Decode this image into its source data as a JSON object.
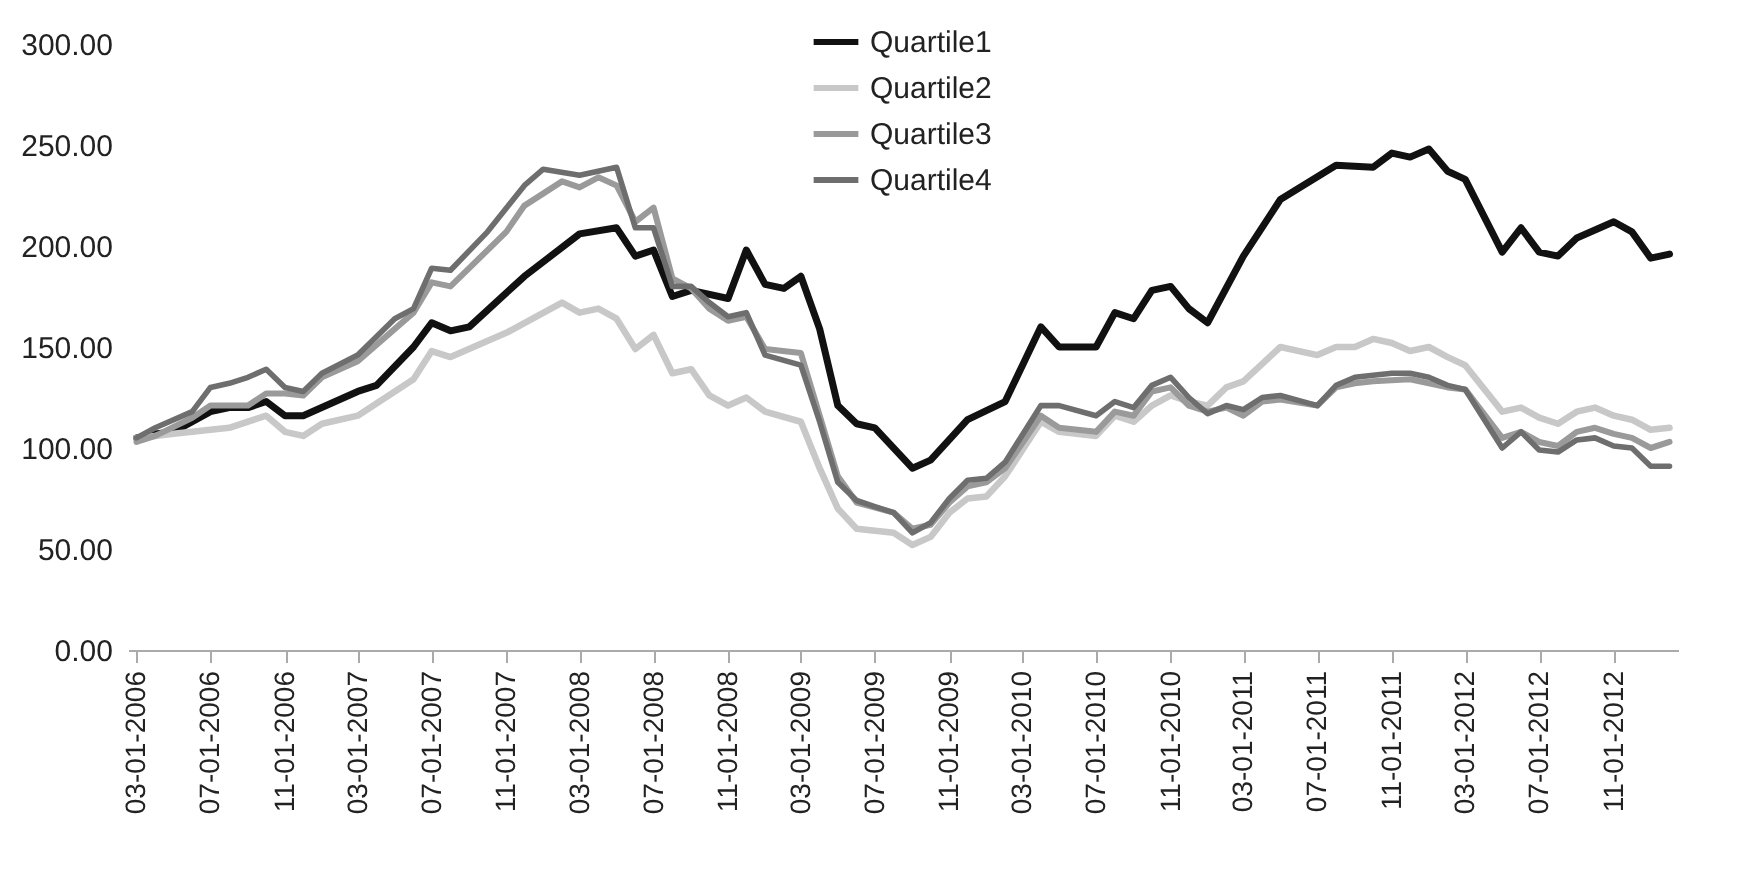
{
  "chart_data": {
    "type": "line",
    "series": [
      {
        "name": "Quartile1",
        "color": "#111111",
        "x": [
          "2006-03",
          "2006-04",
          "2006-05",
          "2006-06",
          "2006-07",
          "2006-08",
          "2006-09",
          "2006-10",
          "2006-11",
          "2006-12",
          "2007-03",
          "2007-04",
          "2007-06",
          "2007-07",
          "2007-08",
          "2007-09",
          "2007-12",
          "2008-03",
          "2008-05",
          "2008-06",
          "2008-07",
          "2008-08",
          "2008-09",
          "2008-11",
          "2008-12",
          "2009-01",
          "2009-02",
          "2009-03",
          "2009-04",
          "2009-05",
          "2009-06",
          "2009-07",
          "2009-09",
          "2009-10",
          "2009-12",
          "2010-02",
          "2010-04",
          "2010-05",
          "2010-07",
          "2010-08",
          "2010-09",
          "2010-10",
          "2010-11",
          "2010-12",
          "2011-01",
          "2011-03",
          "2011-05",
          "2011-08",
          "2011-10",
          "2011-11",
          "2011-12",
          "2012-01",
          "2012-02",
          "2012-03",
          "2012-05",
          "2012-06",
          "2012-07",
          "2012-08",
          "2012-09",
          "2012-11",
          "2012-12",
          "2013-01",
          "2013-02"
        ],
        "values": [
          105,
          107,
          108,
          113,
          118,
          120,
          120,
          123,
          116,
          116,
          128,
          131,
          150,
          162,
          158,
          160,
          185,
          206,
          209,
          195,
          198,
          175,
          178,
          174,
          198,
          181,
          179,
          185,
          159,
          121,
          112,
          110,
          90,
          94,
          114,
          123,
          160,
          150,
          150,
          167,
          164,
          178,
          180,
          169,
          162,
          195,
          223,
          240,
          239,
          246,
          244,
          248,
          237,
          233,
          197,
          209,
          197,
          195,
          204,
          212,
          207,
          194,
          196
        ]
      },
      {
        "name": "Quartile2",
        "color": "#c8c8c8",
        "x": [
          "2006-03",
          "2006-04",
          "2006-05",
          "2006-06",
          "2006-07",
          "2006-08",
          "2006-10",
          "2006-11",
          "2006-12",
          "2007-01",
          "2007-03",
          "2007-06",
          "2007-07",
          "2007-08",
          "2007-11",
          "2008-02",
          "2008-03",
          "2008-04",
          "2008-05",
          "2008-06",
          "2008-07",
          "2008-08",
          "2008-09",
          "2008-10",
          "2008-11",
          "2008-12",
          "2009-01",
          "2009-03",
          "2009-04",
          "2009-05",
          "2009-06",
          "2009-08",
          "2009-09",
          "2009-10",
          "2009-11",
          "2009-12",
          "2010-01",
          "2010-02",
          "2010-04",
          "2010-05",
          "2010-07",
          "2010-08",
          "2010-09",
          "2010-10",
          "2010-11",
          "2010-12",
          "2011-01",
          "2011-02",
          "2011-03",
          "2011-05",
          "2011-07",
          "2011-08",
          "2011-09",
          "2011-10",
          "2011-11",
          "2011-12",
          "2012-01",
          "2012-02",
          "2012-03",
          "2012-05",
          "2012-06",
          "2012-07",
          "2012-08",
          "2012-09",
          "2012-10",
          "2012-11",
          "2012-12",
          "2013-01",
          "2013-02"
        ],
        "values": [
          105,
          106,
          107,
          108,
          109,
          110,
          116,
          108,
          106,
          112,
          116,
          134,
          148,
          145,
          157,
          172,
          167,
          169,
          164,
          149,
          156,
          137,
          139,
          126,
          121,
          125,
          118,
          113,
          90,
          70,
          60,
          58,
          52,
          56,
          68,
          75,
          76,
          86,
          113,
          108,
          106,
          116,
          113,
          121,
          126,
          123,
          121,
          130,
          133,
          150,
          146,
          150,
          150,
          154,
          152,
          148,
          150,
          145,
          141,
          118,
          120,
          115,
          112,
          118,
          120,
          116,
          114,
          109,
          110
        ]
      },
      {
        "name": "Quartile3",
        "color": "#9a9a9a",
        "x": [
          "2006-03",
          "2006-04",
          "2006-06",
          "2006-07",
          "2006-09",
          "2006-10",
          "2006-11",
          "2006-12",
          "2007-01",
          "2007-03",
          "2007-06",
          "2007-07",
          "2007-08",
          "2007-11",
          "2007-12",
          "2008-02",
          "2008-03",
          "2008-04",
          "2008-05",
          "2008-06",
          "2008-07",
          "2008-08",
          "2008-09",
          "2008-10",
          "2008-11",
          "2008-12",
          "2009-01",
          "2009-03",
          "2009-04",
          "2009-05",
          "2009-06",
          "2009-08",
          "2009-09",
          "2009-10",
          "2009-11",
          "2009-12",
          "2010-01",
          "2010-02",
          "2010-04",
          "2010-05",
          "2010-07",
          "2010-08",
          "2010-09",
          "2010-10",
          "2010-11",
          "2010-12",
          "2011-01",
          "2011-02",
          "2011-03",
          "2011-04",
          "2011-05",
          "2011-07",
          "2011-08",
          "2011-09",
          "2011-10",
          "2011-12",
          "2012-02",
          "2012-03",
          "2012-05",
          "2012-06",
          "2012-07",
          "2012-08",
          "2012-09",
          "2012-10",
          "2012-11",
          "2012-12",
          "2013-01",
          "2013-02"
        ],
        "values": [
          103,
          106,
          115,
          121,
          121,
          127,
          127,
          126,
          135,
          143,
          167,
          182,
          180,
          207,
          220,
          232,
          229,
          234,
          230,
          212,
          219,
          184,
          179,
          169,
          163,
          165,
          149,
          147,
          116,
          86,
          73,
          68,
          60,
          62,
          73,
          81,
          83,
          90,
          116,
          110,
          108,
          118,
          116,
          128,
          130,
          121,
          118,
          120,
          116,
          123,
          124,
          121,
          130,
          132,
          133,
          134,
          130,
          129,
          105,
          108,
          103,
          101,
          108,
          110,
          107,
          105,
          100,
          103
        ]
      },
      {
        "name": "Quartile4",
        "color": "#6e6e6e",
        "x": [
          "2006-03",
          "2006-04",
          "2006-06",
          "2006-07",
          "2006-08",
          "2006-09",
          "2006-10",
          "2006-11",
          "2006-12",
          "2007-01",
          "2007-03",
          "2007-05",
          "2007-06",
          "2007-07",
          "2007-08",
          "2007-10",
          "2007-12",
          "2008-01",
          "2008-03",
          "2008-05",
          "2008-06",
          "2008-07",
          "2008-08",
          "2008-09",
          "2008-10",
          "2008-11",
          "2008-12",
          "2009-01",
          "2009-03",
          "2009-04",
          "2009-05",
          "2009-06",
          "2009-07",
          "2009-08",
          "2009-09",
          "2009-10",
          "2009-11",
          "2009-12",
          "2010-01",
          "2010-02",
          "2010-04",
          "2010-05",
          "2010-07",
          "2010-08",
          "2010-09",
          "2010-10",
          "2010-11",
          "2010-12",
          "2011-01",
          "2011-02",
          "2011-03",
          "2011-04",
          "2011-05",
          "2011-07",
          "2011-08",
          "2011-09",
          "2011-10",
          "2011-11",
          "2011-12",
          "2012-01",
          "2012-02",
          "2012-03",
          "2012-05",
          "2012-06",
          "2012-07",
          "2012-08",
          "2012-09",
          "2012-10",
          "2012-11",
          "2012-12",
          "2013-01",
          "2013-02"
        ],
        "values": [
          105,
          110,
          118,
          130,
          132,
          135,
          139,
          130,
          128,
          137,
          146,
          164,
          169,
          189,
          188,
          207,
          230,
          238,
          235,
          239,
          209,
          209,
          180,
          180,
          172,
          165,
          167,
          146,
          141,
          113,
          83,
          74,
          71,
          68,
          58,
          63,
          75,
          84,
          85,
          93,
          121,
          121,
          116,
          123,
          120,
          131,
          135,
          125,
          117,
          121,
          119,
          125,
          126,
          121,
          131,
          135,
          136,
          137,
          137,
          135,
          131,
          129,
          100,
          108,
          99,
          98,
          104,
          105,
          101,
          100,
          91,
          91
        ]
      }
    ],
    "xlim": [
      "2006-02-15",
      "2013-02-15"
    ],
    "xticks": [
      {
        "value": "2006-03",
        "label": "03-01-2006"
      },
      {
        "value": "2006-07",
        "label": "07-01-2006"
      },
      {
        "value": "2006-11",
        "label": "11-01-2006"
      },
      {
        "value": "2007-03",
        "label": "03-01-2007"
      },
      {
        "value": "2007-07",
        "label": "07-01-2007"
      },
      {
        "value": "2007-11",
        "label": "11-01-2007"
      },
      {
        "value": "2008-03",
        "label": "03-01-2008"
      },
      {
        "value": "2008-07",
        "label": "07-01-2008"
      },
      {
        "value": "2008-11",
        "label": "11-01-2008"
      },
      {
        "value": "2009-03",
        "label": "03-01-2009"
      },
      {
        "value": "2009-07",
        "label": "07-01-2009"
      },
      {
        "value": "2009-11",
        "label": "11-01-2009"
      },
      {
        "value": "2010-03",
        "label": "03-01-2010"
      },
      {
        "value": "2010-07",
        "label": "07-01-2010"
      },
      {
        "value": "2010-11",
        "label": "11-01-2010"
      },
      {
        "value": "2011-03",
        "label": "03-01-2011"
      },
      {
        "value": "2011-07",
        "label": "07-01-2011"
      },
      {
        "value": "2011-11",
        "label": "11-01-2011"
      },
      {
        "value": "2012-03",
        "label": "03-01-2012"
      },
      {
        "value": "2012-07",
        "label": "07-01-2012"
      },
      {
        "value": "2012-11",
        "label": "11-01-2012"
      }
    ],
    "ylim": [
      0,
      300
    ],
    "yticks": [
      {
        "value": 0,
        "label": "0.00"
      },
      {
        "value": 50,
        "label": "50.00"
      },
      {
        "value": 100,
        "label": "100.00"
      },
      {
        "value": 150,
        "label": "150.00"
      },
      {
        "value": 200,
        "label": "200.00"
      },
      {
        "value": 250,
        "label": "250.00"
      },
      {
        "value": 300,
        "label": "300.00"
      }
    ],
    "grid": false,
    "legend": "top",
    "line_style": "solid",
    "marker": "none"
  }
}
